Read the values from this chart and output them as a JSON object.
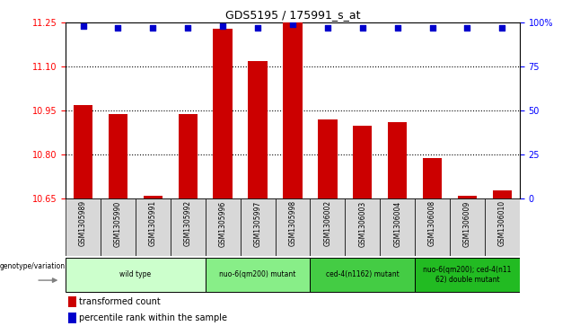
{
  "title": "GDS5195 / 175991_s_at",
  "samples": [
    "GSM1305989",
    "GSM1305990",
    "GSM1305991",
    "GSM1305992",
    "GSM1305996",
    "GSM1305997",
    "GSM1305998",
    "GSM1306002",
    "GSM1306003",
    "GSM1306004",
    "GSM1306008",
    "GSM1306009",
    "GSM1306010"
  ],
  "bar_values": [
    10.97,
    10.94,
    10.66,
    10.94,
    11.23,
    11.12,
    11.25,
    10.92,
    10.9,
    10.91,
    10.79,
    10.66,
    10.68
  ],
  "percentile_values": [
    98,
    97,
    97,
    97,
    98,
    97,
    99,
    97,
    97,
    97,
    97,
    97,
    97
  ],
  "ylim_left": [
    10.65,
    11.25
  ],
  "ylim_right": [
    0,
    100
  ],
  "yticks_left": [
    10.65,
    10.8,
    10.95,
    11.1,
    11.25
  ],
  "yticks_right": [
    0,
    25,
    50,
    75,
    100
  ],
  "bar_color": "#cc0000",
  "percentile_color": "#0000cc",
  "bar_baseline": 10.65,
  "groups_data": [
    {
      "label": "wild type",
      "indices": [
        0,
        1,
        2,
        3
      ],
      "color": "#ccffcc"
    },
    {
      "label": "nuo-6(qm200) mutant",
      "indices": [
        4,
        5,
        6
      ],
      "color": "#88ee88"
    },
    {
      "label": "ced-4(n1162) mutant",
      "indices": [
        7,
        8,
        9
      ],
      "color": "#44cc44"
    },
    {
      "label": "nuo-6(qm200); ced-4(n11\n62) double mutant",
      "indices": [
        10,
        11,
        12
      ],
      "color": "#22bb22"
    }
  ],
  "genotype_label": "genotype/variation",
  "legend_bar_label": "transformed count",
  "legend_pct_label": "percentile rank within the sample",
  "grid_yticks": [
    10.8,
    10.95,
    11.1
  ],
  "plot_bg_color": "#ffffff",
  "label_area_bg": "#d0d0d0",
  "cell_bg": "#d8d8d8"
}
